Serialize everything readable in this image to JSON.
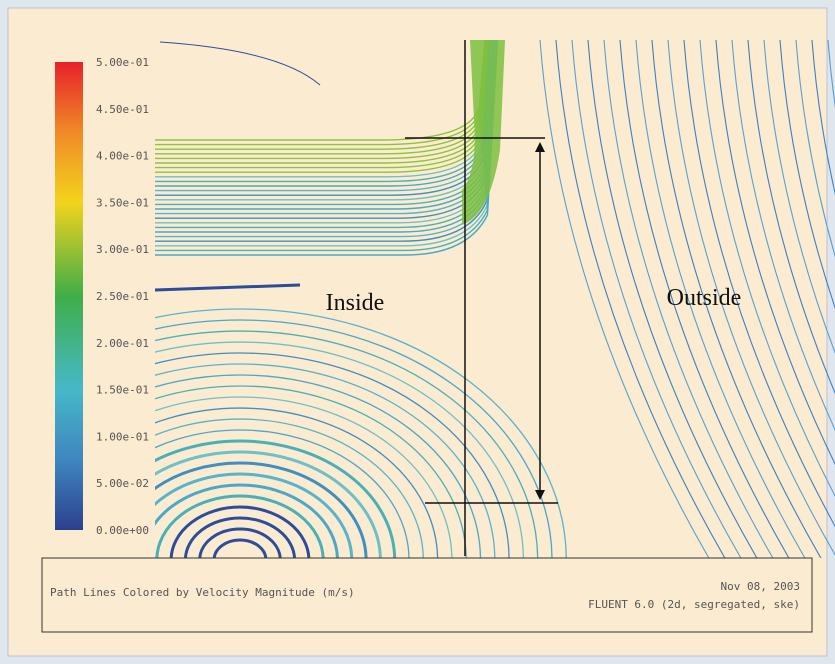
{
  "colorbar": {
    "labels": [
      "5.00e-01",
      "4.50e-01",
      "4.00e-01",
      "3.50e-01",
      "3.00e-01",
      "2.50e-01",
      "2.00e-01",
      "1.50e-01",
      "1.00e-01",
      "5.00e-02",
      "0.00e+00"
    ]
  },
  "annotations": {
    "inside": "Inside",
    "outside": "Outside"
  },
  "footer": {
    "title": "Path Lines Colored by Velocity Magnitude (m/s)",
    "date": "Nov 08, 2003",
    "software": "FLUENT 6.0 (2d, segregated, ske)"
  }
}
